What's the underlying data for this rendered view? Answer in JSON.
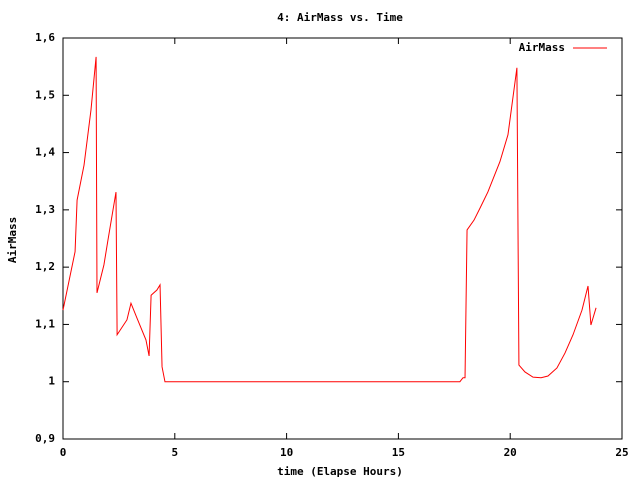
{
  "chart_data": {
    "type": "line",
    "title": "4: AirMass vs. Time",
    "x_label": "time (Elapse Hours)",
    "y_label": "AirMass",
    "x": [
      0,
      0.54,
      0.63,
      0.94,
      1.25,
      1.48,
      1.52,
      1.83,
      2.01,
      2.37,
      2.42,
      2.86,
      3.04,
      3.31,
      3.71,
      3.85,
      3.94,
      4.2,
      4.34,
      4.43,
      4.56,
      17.75,
      17.89,
      17.98,
      18.07,
      18.38,
      18.65,
      19.0,
      19.54,
      19.9,
      20.3,
      20.39,
      20.66,
      21.02,
      21.38,
      21.69,
      22.09,
      22.45,
      22.81,
      23.21,
      23.48,
      23.61,
      23.84
    ],
    "series": [
      {
        "name": "AirMass",
        "color": "#ff0000",
        "values": [
          1.125,
          1.227,
          1.317,
          1.378,
          1.474,
          1.567,
          1.155,
          1.204,
          1.247,
          1.331,
          1.082,
          1.108,
          1.137,
          1.111,
          1.073,
          1.045,
          1.151,
          1.16,
          1.169,
          1.026,
          1.0,
          1.0,
          1.007,
          1.007,
          1.265,
          1.282,
          1.303,
          1.331,
          1.384,
          1.431,
          1.548,
          1.029,
          1.017,
          1.008,
          1.007,
          1.01,
          1.024,
          1.05,
          1.082,
          1.125,
          1.167,
          1.099,
          1.129
        ]
      }
    ],
    "xlim": [
      0,
      25
    ],
    "xticks": [
      0,
      5,
      10,
      15,
      20,
      25
    ],
    "ylim": [
      0.9,
      1.6
    ],
    "yticks": [
      {
        "value": 0.9,
        "label": "0,9"
      },
      1,
      {
        "value": 1.1,
        "label": "1,1"
      },
      {
        "value": 1.2,
        "label": "1,2"
      },
      {
        "value": 1.3,
        "label": "1,3"
      },
      {
        "value": 1.4,
        "label": "1,4"
      },
      {
        "value": 1.5,
        "label": "1,5"
      },
      {
        "value": 1.6,
        "label": "1,6"
      }
    ],
    "legend": "top right",
    "grid": false
  }
}
